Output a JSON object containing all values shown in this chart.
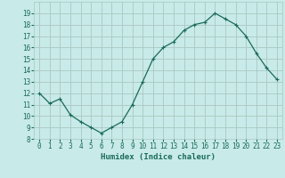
{
  "x": [
    0,
    1,
    2,
    3,
    4,
    5,
    6,
    7,
    8,
    9,
    10,
    11,
    12,
    13,
    14,
    15,
    16,
    17,
    18,
    19,
    20,
    21,
    22,
    23
  ],
  "y": [
    12.0,
    11.1,
    11.5,
    10.1,
    9.5,
    9.0,
    8.5,
    9.0,
    9.5,
    11.0,
    13.0,
    15.0,
    16.0,
    16.5,
    17.5,
    18.0,
    18.2,
    19.0,
    18.5,
    18.0,
    17.0,
    15.5,
    14.2,
    13.2
  ],
  "line_color": "#1a6b5a",
  "marker": "+",
  "marker_size": 3,
  "background_color": "#c8eae8",
  "grid_color": "#aac8c4",
  "xlabel": "Humidex (Indice chaleur)",
  "ylim": [
    8,
    20
  ],
  "xlim": [
    -0.5,
    23.5
  ],
  "yticks": [
    8,
    9,
    10,
    11,
    12,
    13,
    14,
    15,
    16,
    17,
    18,
    19
  ],
  "xticks": [
    0,
    1,
    2,
    3,
    4,
    5,
    6,
    7,
    8,
    9,
    10,
    11,
    12,
    13,
    14,
    15,
    16,
    17,
    18,
    19,
    20,
    21,
    22,
    23
  ],
  "tick_fontsize": 5.5,
  "label_fontsize": 6.5,
  "linewidth": 0.9,
  "markeredgewidth": 0.8
}
